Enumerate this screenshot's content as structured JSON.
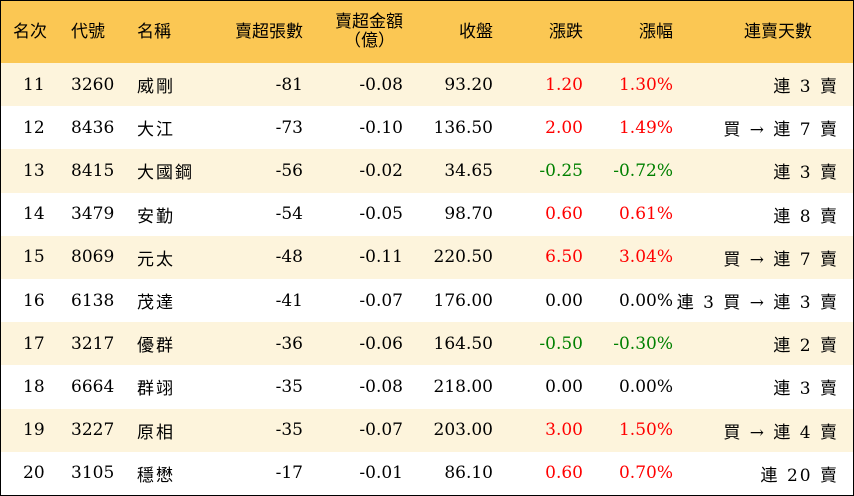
{
  "header": {
    "rank": "名次",
    "code": "代號",
    "name": "名稱",
    "oversold_lots": "賣超張數",
    "oversold_amount_line1": "賣超金額",
    "oversold_amount_line2": "（億）",
    "close": "收盤",
    "change": "漲跌",
    "change_pct": "漲幅",
    "consecutive_days": "連賣天數"
  },
  "colors": {
    "header_bg": "#fbc753",
    "stripe_bg": "#fdf4dc",
    "up": "#ff0000",
    "down": "#008000"
  },
  "rows": [
    {
      "rank": "11",
      "code": "3260",
      "name": "威剛",
      "lots": "-81",
      "amount": "-0.08",
      "close": "93.20",
      "change": "1.20",
      "pct": "1.30%",
      "dir": "up",
      "days": "連 3 賣"
    },
    {
      "rank": "12",
      "code": "8436",
      "name": "大江",
      "lots": "-73",
      "amount": "-0.10",
      "close": "136.50",
      "change": "2.00",
      "pct": "1.49%",
      "dir": "up",
      "days": "買 → 連 7 賣"
    },
    {
      "rank": "13",
      "code": "8415",
      "name": "大國鋼",
      "lots": "-56",
      "amount": "-0.02",
      "close": "34.65",
      "change": "-0.25",
      "pct": "-0.72%",
      "dir": "down",
      "days": "連 3 賣"
    },
    {
      "rank": "14",
      "code": "3479",
      "name": "安勤",
      "lots": "-54",
      "amount": "-0.05",
      "close": "98.70",
      "change": "0.60",
      "pct": "0.61%",
      "dir": "up",
      "days": "連 8 賣"
    },
    {
      "rank": "15",
      "code": "8069",
      "name": "元太",
      "lots": "-48",
      "amount": "-0.11",
      "close": "220.50",
      "change": "6.50",
      "pct": "3.04%",
      "dir": "up",
      "days": "買 → 連 7 賣"
    },
    {
      "rank": "16",
      "code": "6138",
      "name": "茂達",
      "lots": "-41",
      "amount": "-0.07",
      "close": "176.00",
      "change": "0.00",
      "pct": "0.00%",
      "dir": "flat",
      "days": "連 3 買 → 連 3 賣"
    },
    {
      "rank": "17",
      "code": "3217",
      "name": "優群",
      "lots": "-36",
      "amount": "-0.06",
      "close": "164.50",
      "change": "-0.50",
      "pct": "-0.30%",
      "dir": "down",
      "days": "連 2 賣"
    },
    {
      "rank": "18",
      "code": "6664",
      "name": "群翊",
      "lots": "-35",
      "amount": "-0.08",
      "close": "218.00",
      "change": "0.00",
      "pct": "0.00%",
      "dir": "flat",
      "days": "連 3 賣"
    },
    {
      "rank": "19",
      "code": "3227",
      "name": "原相",
      "lots": "-35",
      "amount": "-0.07",
      "close": "203.00",
      "change": "3.00",
      "pct": "1.50%",
      "dir": "up",
      "days": "買 → 連 4 賣"
    },
    {
      "rank": "20",
      "code": "3105",
      "name": "穩懋",
      "lots": "-17",
      "amount": "-0.01",
      "close": "86.10",
      "change": "0.60",
      "pct": "0.70%",
      "dir": "up",
      "days": "連 20 賣"
    }
  ]
}
